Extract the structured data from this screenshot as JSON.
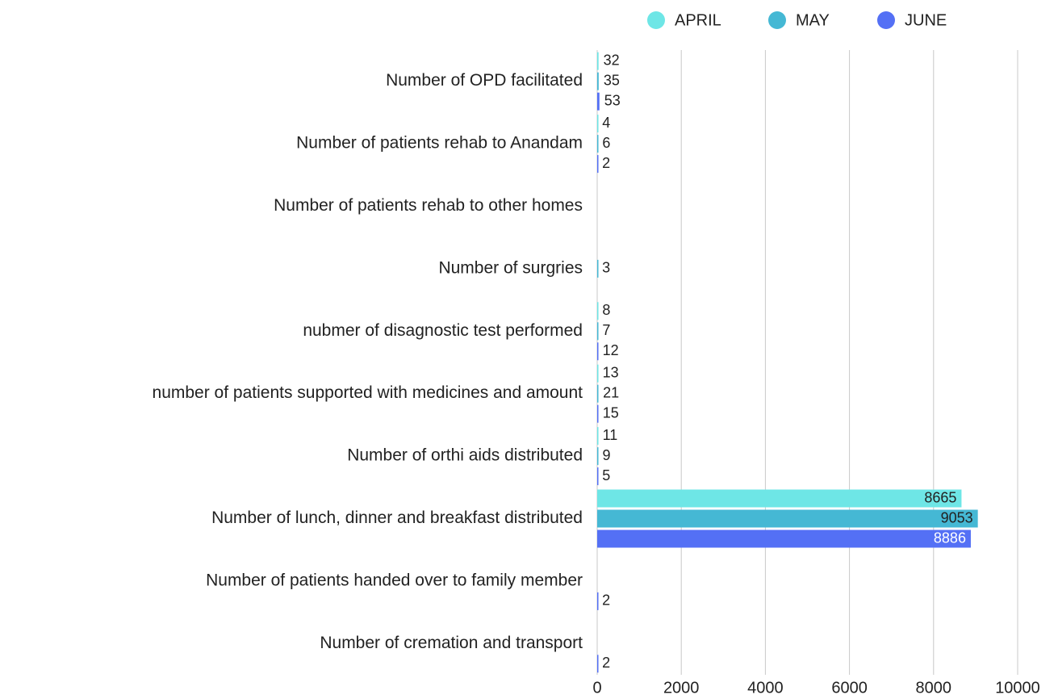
{
  "chart_data": {
    "type": "bar",
    "orientation": "horizontal",
    "categories": [
      "Number of OPD facilitated",
      "Number of patients rehab to Anandam",
      "Number of patients rehab to other homes",
      "Number of surgries",
      "nubmer of disagnostic test performed",
      "number of patients supported with medicines and amount",
      "Number of orthi aids distributed",
      "Number of lunch, dinner and breakfast distributed",
      "Number of patients handed over to family member",
      "Number of cremation and transport"
    ],
    "series": [
      {
        "name": "APRIL",
        "color": "#6ee6e6",
        "values": [
          32,
          4,
          null,
          null,
          8,
          13,
          11,
          8665,
          null,
          null
        ]
      },
      {
        "name": "MAY",
        "color": "#45b8d4",
        "values": [
          35,
          6,
          null,
          3,
          7,
          21,
          9,
          9053,
          null,
          null
        ]
      },
      {
        "name": "JUNE",
        "color": "#5470f5",
        "values": [
          53,
          2,
          null,
          null,
          12,
          15,
          5,
          8886,
          2,
          2
        ]
      }
    ],
    "xlim": [
      0,
      10000
    ],
    "xticks": [
      0,
      2000,
      4000,
      6000,
      8000,
      10000
    ],
    "grid": true,
    "legend": "top-right"
  }
}
